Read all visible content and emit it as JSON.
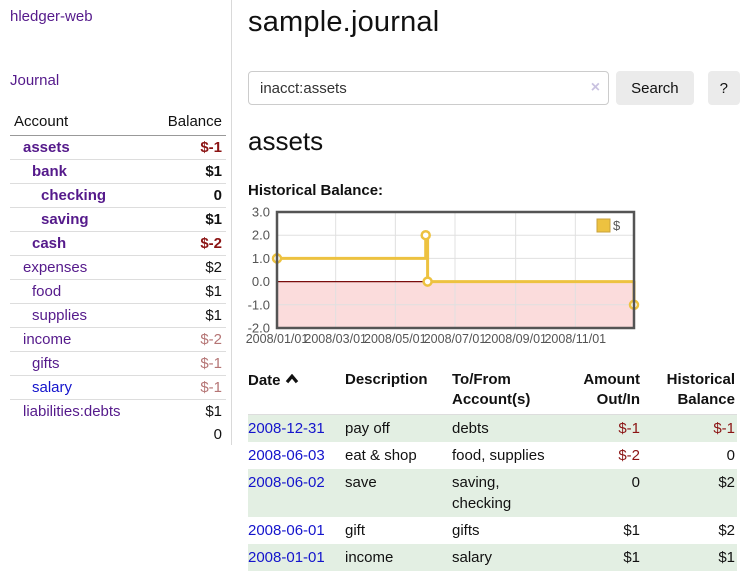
{
  "colors": {
    "link_purple": "#551a8b",
    "link_blue": "#1414cc",
    "negative_strong": "#8b1414",
    "negative_muted": "#b57575",
    "row_green": "#e3efe3",
    "series_yellow": "#edc240",
    "negative_region_pink": "#fbdcdc",
    "zero_line_red": "#7a0c0c",
    "axis_gray": "#545454",
    "grid_gray": "#e0e0e0"
  },
  "sidebar": {
    "app_title": "hledger-web",
    "nav_journal": "Journal",
    "accounts": {
      "col_account": "Account",
      "col_balance": "Balance",
      "rows": [
        {
          "name": "assets",
          "depth": 1,
          "bold": true,
          "balance": "$-1",
          "balance_style": "neg-strong"
        },
        {
          "name": "bank",
          "depth": 2,
          "bold": true,
          "balance": "$1",
          "balance_style": "pos"
        },
        {
          "name": "checking",
          "depth": 3,
          "bold": true,
          "balance": "0",
          "balance_style": "pos"
        },
        {
          "name": "saving",
          "depth": 3,
          "bold": true,
          "balance": "$1",
          "balance_style": "pos"
        },
        {
          "name": "cash",
          "depth": 2,
          "bold": true,
          "balance": "$-2",
          "balance_style": "neg-strong"
        },
        {
          "name": "expenses",
          "depth": 1,
          "bold": false,
          "balance": "$2",
          "balance_style": "pos"
        },
        {
          "name": "food",
          "depth": 2,
          "bold": false,
          "balance": "$1",
          "balance_style": "pos"
        },
        {
          "name": "supplies",
          "depth": 2,
          "bold": false,
          "balance": "$1",
          "balance_style": "pos"
        },
        {
          "name": "income",
          "depth": 1,
          "bold": false,
          "balance": "$-2",
          "balance_style": "neg-muted"
        },
        {
          "name": "gifts",
          "depth": 2,
          "bold": false,
          "balance": "$-1",
          "balance_style": "neg-muted"
        },
        {
          "name": "salary",
          "depth": 2,
          "bold": false,
          "balance": "$-1",
          "balance_style": "neg-muted",
          "link_color": "blue"
        },
        {
          "name": "liabilities:debts",
          "depth": 1,
          "bold": false,
          "balance": "$1",
          "balance_style": "pos"
        }
      ],
      "total": "0"
    }
  },
  "main": {
    "title": "sample.journal",
    "search": {
      "value": "inacct:assets",
      "clear": "×",
      "search_button": "Search",
      "help_button": "?"
    },
    "account_heading": "assets",
    "chart_title": "Historical Balance:"
  },
  "chart_data": {
    "type": "line",
    "step": true,
    "title": "Historical Balance of assets",
    "grid": true,
    "legend": [
      {
        "label": "$",
        "color": "#edc240"
      }
    ],
    "legend_position": "top-right",
    "x_range": [
      "2008-01-01",
      "2008-12-31"
    ],
    "x_ticks": [
      {
        "date": "2008-01-01",
        "label": "2008/01/01"
      },
      {
        "date": "2008-03-01",
        "label": "2008/03/01"
      },
      {
        "date": "2008-05-01",
        "label": "2008/05/01"
      },
      {
        "date": "2008-07-01",
        "label": "2008/07/01"
      },
      {
        "date": "2008-09-01",
        "label": "2008/09/01"
      },
      {
        "date": "2008-11-01",
        "label": "2008/11/01"
      }
    ],
    "y_ticks": [
      3,
      2,
      1,
      0,
      -1,
      -2
    ],
    "ylim": [
      -2,
      3
    ],
    "series": [
      {
        "name": "$",
        "color": "#edc240",
        "points": [
          [
            "2008-01-01",
            1
          ],
          [
            "2008-06-01",
            2
          ],
          [
            "2008-06-03",
            0
          ],
          [
            "2008-12-31",
            -1
          ]
        ]
      }
    ],
    "negative_region_shaded": true
  },
  "register": {
    "headers": {
      "date": "Date",
      "description": "Description",
      "accounts": "To/From Account(s)",
      "amount": "Amount Out/In",
      "balance": "Historical Balance"
    },
    "sort_column": "date",
    "rows": [
      {
        "date": "2008-12-31",
        "description": "pay off",
        "accounts": "debts",
        "amount": "$-1",
        "amount_neg": true,
        "balance": "$-1",
        "balance_neg": true
      },
      {
        "date": "2008-06-03",
        "description": "eat & shop",
        "accounts": "food, supplies",
        "amount": "$-2",
        "amount_neg": true,
        "balance": "0",
        "balance_neg": false
      },
      {
        "date": "2008-06-02",
        "description": "save",
        "accounts": "saving, checking",
        "amount": "0",
        "amount_neg": false,
        "balance": "$2",
        "balance_neg": false
      },
      {
        "date": "2008-06-01",
        "description": "gift",
        "accounts": "gifts",
        "amount": "$1",
        "amount_neg": false,
        "balance": "$2",
        "balance_neg": false
      },
      {
        "date": "2008-01-01",
        "description": "income",
        "accounts": "salary",
        "amount": "$1",
        "amount_neg": false,
        "balance": "$1",
        "balance_neg": false
      }
    ]
  }
}
